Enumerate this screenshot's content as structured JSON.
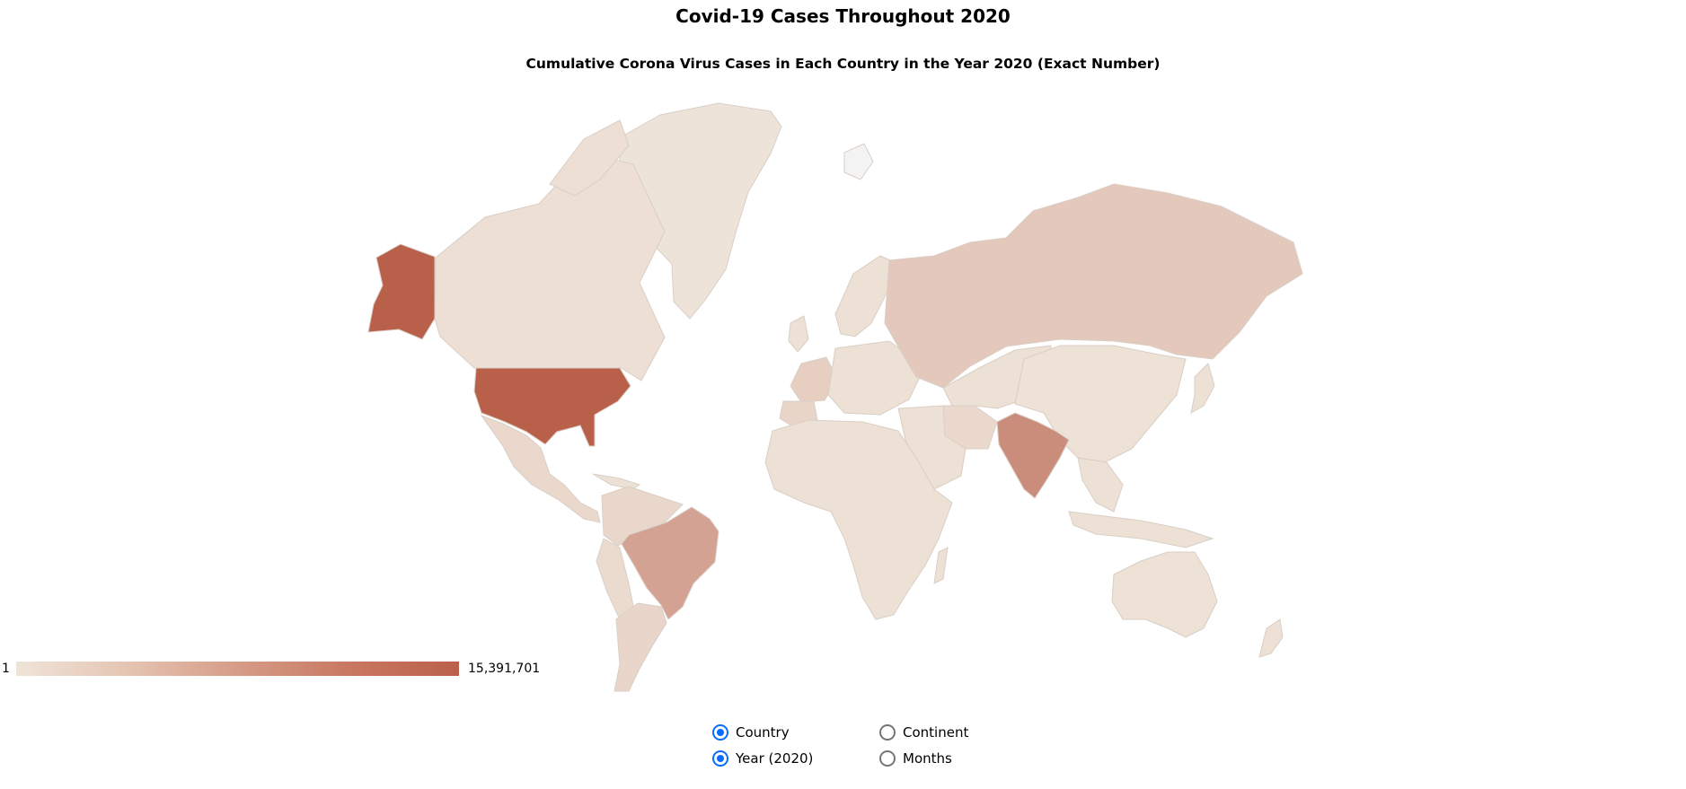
{
  "header": {
    "title": "Covid-19 Cases Throughout 2020",
    "subtitle": "Cumulative Corona Virus Cases in Each Country in the Year 2020 (Exact Number)"
  },
  "legend": {
    "min_label": "1",
    "max_label": "15,391,701",
    "min_value": 1,
    "max_value": 15391701,
    "colors": [
      "#efe4d9",
      "#e5c5b2",
      "#d69c87",
      "#c97862",
      "#b9604b"
    ]
  },
  "map_data": {
    "type": "choropleth",
    "projection": "mercator",
    "metric": "cumulative_cases_2020",
    "regions": [
      {
        "name": "United States",
        "level": 1.0
      },
      {
        "name": "India",
        "level": 0.66
      },
      {
        "name": "Brazil",
        "level": 0.5
      },
      {
        "name": "Russia",
        "level": 0.21
      },
      {
        "name": "France",
        "level": 0.17
      },
      {
        "name": "Argentina",
        "level": 0.11
      },
      {
        "name": "Colombia",
        "level": 0.1
      },
      {
        "name": "Mexico",
        "level": 0.09
      },
      {
        "name": "Peru",
        "level": 0.07
      },
      {
        "name": "Spain",
        "level": 0.12
      },
      {
        "name": "Iran",
        "level": 0.09
      },
      {
        "name": "Canada",
        "level": 0.04
      },
      {
        "name": "Australia",
        "level": 0.02
      },
      {
        "name": "China",
        "level": 0.02
      },
      {
        "name": "Greenland",
        "level": 0.01
      }
    ]
  },
  "controls": {
    "options": [
      {
        "label": "Country",
        "selected": true
      },
      {
        "label": "Continent",
        "selected": false
      },
      {
        "label": "Year (2020)",
        "selected": true
      },
      {
        "label": "Months",
        "selected": false
      }
    ]
  }
}
